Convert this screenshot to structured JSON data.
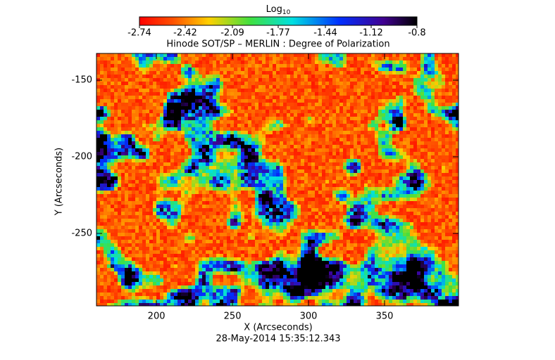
{
  "chart_data": {
    "type": "heatmap",
    "title": "Hinode SOT/SP – MERLIN : Degree of Polarization",
    "x_label": "X (Arcseconds)",
    "y_label": "Y (Arcseconds)",
    "footer": "28-May-2014 15:35:12.343",
    "xlim": [
      160.6,
      398.6
    ],
    "xticks": [
      200,
      250,
      300,
      350
    ],
    "ylim": [
      -297.2,
      -132.6
    ],
    "yticks": [
      -250,
      -200,
      -150
    ],
    "colorbar": {
      "label": "Log",
      "label_subscript": "10",
      "clim": [
        -2.74,
        -0.8
      ],
      "ticks": [
        -2.74,
        -2.42,
        -2.09,
        -1.77,
        -1.44,
        -1.12,
        -0.8
      ]
    }
  }
}
